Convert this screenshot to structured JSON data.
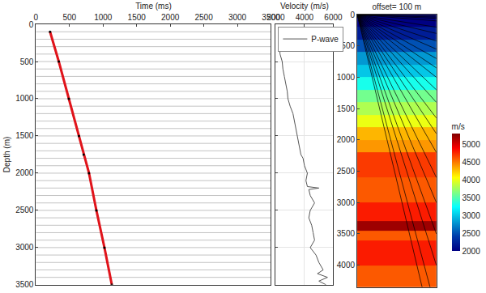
{
  "chart_data": [
    {
      "type": "seismic_gather",
      "xlabel": "Time (ms)",
      "ylabel": "Depth (m)",
      "xlim": [
        0,
        3500
      ],
      "xticks": [
        0,
        500,
        1000,
        1500,
        2000,
        2500,
        3000,
        3500
      ],
      "ylim": [
        0,
        3500
      ],
      "yticks": [
        0,
        500,
        1000,
        1500,
        2000,
        2500,
        3000,
        3500
      ],
      "receiver_depths": [
        100,
        200,
        300,
        400,
        500,
        600,
        700,
        800,
        900,
        1000,
        1100,
        1200,
        1300,
        1400,
        1500,
        1600,
        1700,
        1800,
        1900,
        2000,
        2100,
        2200,
        2300,
        2400,
        2500,
        2600,
        2700,
        2800,
        2900,
        3000,
        3100,
        3200,
        3300,
        3400
      ],
      "first_breaks": {
        "color": "#e0141b",
        "marker": "circle",
        "line_style": "solid",
        "x": [
          210,
          340,
          490,
          640,
          710,
          790,
          900,
          1020,
          1130
        ],
        "y": [
          100,
          500,
          1000,
          1500,
          1750,
          2000,
          2500,
          3000,
          3500
        ]
      }
    },
    {
      "type": "line",
      "xlabel": "Velocity (m/s)",
      "xlim": [
        2000,
        6000
      ],
      "xticks": [
        2000,
        4000,
        6000
      ],
      "ylim": [
        0,
        3500
      ],
      "tick_labels": "x",
      "legend": "top left",
      "series": [
        {
          "name": "P-wave",
          "color": "#555555",
          "line_style": "solid",
          "x": [
            2250,
            2300,
            2450,
            2500,
            2600,
            2700,
            2800,
            2850,
            3000,
            3200,
            3300,
            3400,
            3500,
            3600,
            3700,
            3750,
            3900,
            4000,
            4200,
            4100,
            4200,
            5000,
            4300,
            4400,
            4700,
            4400,
            4300,
            4500,
            4600,
            4700,
            4400,
            4800,
            5000,
            5300,
            4900,
            5600,
            5000,
            5500
          ],
          "y": [
            250,
            400,
            500,
            600,
            700,
            800,
            900,
            1000,
            1100,
            1200,
            1300,
            1400,
            1500,
            1600,
            1700,
            1750,
            1800,
            1900,
            2000,
            2100,
            2180,
            2200,
            2220,
            2300,
            2400,
            2500,
            2600,
            2700,
            2800,
            2900,
            3000,
            3100,
            3200,
            3300,
            3350,
            3400,
            3450,
            3500
          ]
        }
      ]
    },
    {
      "type": "heatmap",
      "title": "offset= 100 m",
      "xlim": [
        0,
        500
      ],
      "ylim": [
        0,
        4350
      ],
      "yticks": [
        0,
        500,
        1000,
        1500,
        2000,
        2500,
        3000,
        3500,
        4000
      ],
      "tick_labels": "y",
      "cells": {
        "depth_edges": [
          0,
          200,
          400,
          600,
          800,
          1000,
          1200,
          1400,
          1600,
          1800,
          2000,
          2200,
          2600,
          3000,
          3300,
          3450,
          3600,
          4000,
          4350
        ],
        "velocity": [
          2000,
          2200,
          2500,
          2800,
          3000,
          3300,
          3600,
          3800,
          4000,
          4300,
          4400,
          4700,
          4600,
          4800,
          5200,
          4600,
          4800,
          4600
        ]
      },
      "colorbar": {
        "title": "m/s",
        "range": [
          2000,
          5300
        ],
        "ticks": [
          2000,
          2500,
          3000,
          3500,
          4000,
          4500,
          5000
        ]
      },
      "rays": [
        {
          "x": [
            0,
            500
          ],
          "y": [
            0,
            20
          ]
        },
        {
          "x": [
            0,
            500
          ],
          "y": [
            0,
            40
          ]
        },
        {
          "x": [
            0,
            500
          ],
          "y": [
            0,
            60
          ]
        },
        {
          "x": [
            0,
            500
          ],
          "y": [
            0,
            100
          ]
        },
        {
          "x": [
            0,
            500
          ],
          "y": [
            0,
            200
          ]
        },
        {
          "x": [
            0,
            500
          ],
          "y": [
            0,
            300
          ]
        },
        {
          "x": [
            0,
            500
          ],
          "y": [
            0,
            420
          ]
        },
        {
          "x": [
            0,
            500
          ],
          "y": [
            0,
            550
          ]
        },
        {
          "x": [
            0,
            500
          ],
          "y": [
            0,
            700
          ]
        },
        {
          "x": [
            0,
            500
          ],
          "y": [
            0,
            850
          ]
        },
        {
          "x": [
            0,
            500
          ],
          "y": [
            0,
            1000
          ]
        },
        {
          "x": [
            0,
            500
          ],
          "y": [
            0,
            1200
          ]
        },
        {
          "x": [
            0,
            500
          ],
          "y": [
            0,
            1400
          ]
        },
        {
          "x": [
            0,
            500
          ],
          "y": [
            0,
            1650
          ]
        },
        {
          "x": [
            0,
            500
          ],
          "y": [
            0,
            1900
          ]
        },
        {
          "x": [
            0,
            500
          ],
          "y": [
            0,
            2200
          ]
        },
        {
          "x": [
            0,
            500
          ],
          "y": [
            0,
            2600
          ]
        },
        {
          "x": [
            0,
            500
          ],
          "y": [
            0,
            3000
          ]
        },
        {
          "x": [
            0,
            500
          ],
          "y": [
            0,
            3500
          ]
        },
        {
          "x": [
            0,
            500
          ],
          "y": [
            0,
            4000
          ]
        },
        {
          "x": [
            0,
            460
          ],
          "y": [
            0,
            4350
          ]
        },
        {
          "x": [
            0,
            410
          ],
          "y": [
            0,
            4350
          ]
        }
      ]
    }
  ]
}
